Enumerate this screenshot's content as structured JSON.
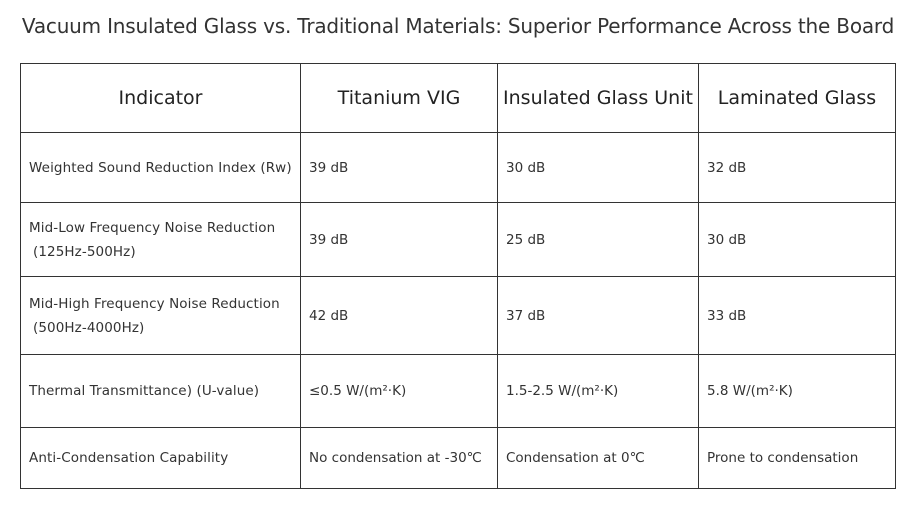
{
  "title": "Vacuum Insulated Glass vs. Traditional Materials: Superior Performance Across the Board",
  "table": {
    "headers": [
      "Indicator",
      "Titanium VIG",
      "Insulated Glass Unit",
      "Laminated Glass"
    ],
    "rows": [
      {
        "indicator": "Weighted Sound Reduction Index (Rw)",
        "indicator_sub": "",
        "values": [
          "39 dB",
          "30 dB",
          "32 dB"
        ]
      },
      {
        "indicator": "Mid-Low Frequency Noise Reduction",
        "indicator_sub": "(125Hz-500Hz)",
        "values": [
          "39 dB",
          "25 dB",
          "30 dB"
        ]
      },
      {
        "indicator": "Mid-High Frequency Noise Reduction",
        "indicator_sub": "(500Hz-4000Hz)",
        "values": [
          "42 dB",
          "37 dB",
          "33 dB"
        ]
      },
      {
        "indicator": "Thermal Transmittance) (U-value)",
        "indicator_sub": "",
        "values": [
          "≤0.5 W/(m²·K)",
          "1.5-2.5 W/(m²·K)",
          "5.8 W/(m²·K)"
        ]
      },
      {
        "indicator": "Anti-Condensation Capability",
        "indicator_sub": "",
        "values": [
          "No condensation at -30℃",
          "Condensation at 0℃",
          "Prone to condensation"
        ]
      }
    ]
  }
}
